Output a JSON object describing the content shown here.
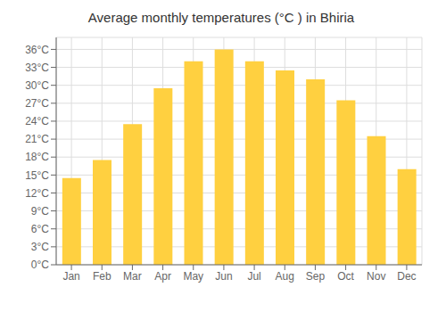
{
  "chart_data": {
    "type": "bar",
    "title": "Average monthly temperatures (°C ) in Bhiria",
    "categories": [
      "Jan",
      "Feb",
      "Mar",
      "Apr",
      "May",
      "Jun",
      "Jul",
      "Aug",
      "Sep",
      "Oct",
      "Nov",
      "Dec"
    ],
    "values": [
      14.5,
      17.5,
      23.5,
      29.5,
      34.0,
      36.0,
      34.0,
      32.5,
      31.0,
      27.5,
      21.5,
      16.0
    ],
    "color": "#FFD040",
    "ylim": [
      0,
      38
    ],
    "yticks": [
      {
        "value": 0,
        "label": "0°C"
      },
      {
        "value": 3,
        "label": "3°C"
      },
      {
        "value": 6,
        "label": "6°C"
      },
      {
        "value": 9,
        "label": "9°C"
      },
      {
        "value": 12,
        "label": "12°C"
      },
      {
        "value": 15,
        "label": "15°C"
      },
      {
        "value": 18,
        "label": "18°C"
      },
      {
        "value": 21,
        "label": "21°C"
      },
      {
        "value": 24,
        "label": "24°C"
      },
      {
        "value": 27,
        "label": "27°C"
      },
      {
        "value": 30,
        "label": "30°C"
      },
      {
        "value": 33,
        "label": "33°C"
      },
      {
        "value": 36,
        "label": "36°C"
      }
    ],
    "grid": true
  }
}
